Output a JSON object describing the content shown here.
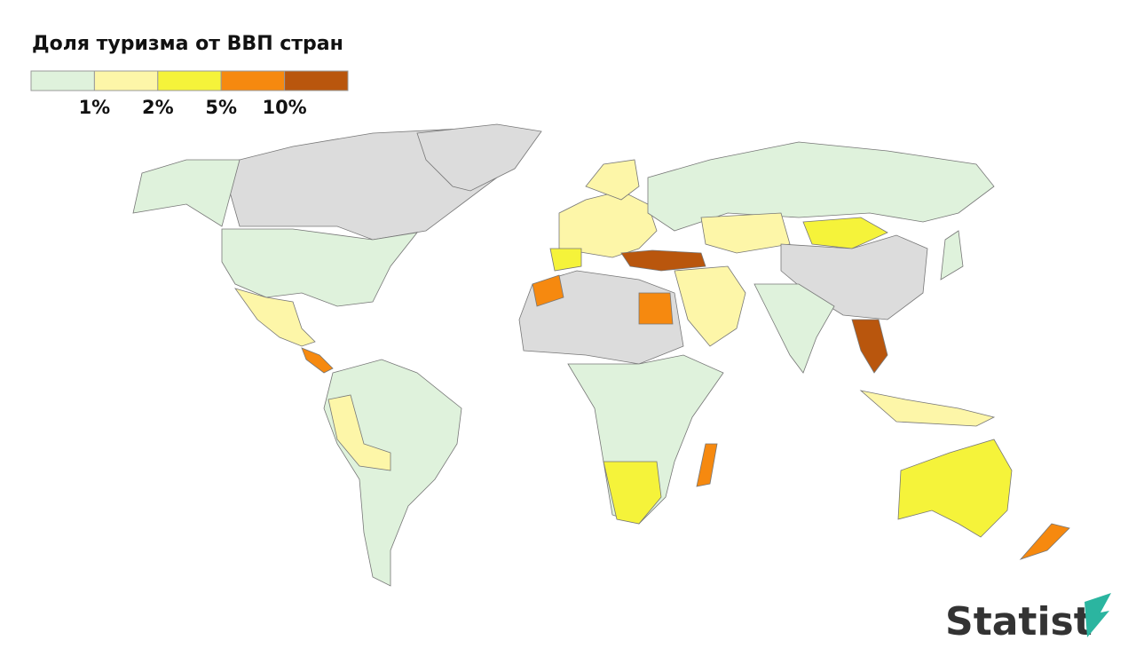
{
  "title": "Доля туризма от ВВП стран",
  "legend": {
    "colors": [
      "#dff2dc",
      "#fdf6a8",
      "#f5f33a",
      "#f6890f",
      "#b9560d"
    ],
    "labels": [
      "1%",
      "2%",
      "5%",
      "10%"
    ]
  },
  "logo": "Statist"
}
